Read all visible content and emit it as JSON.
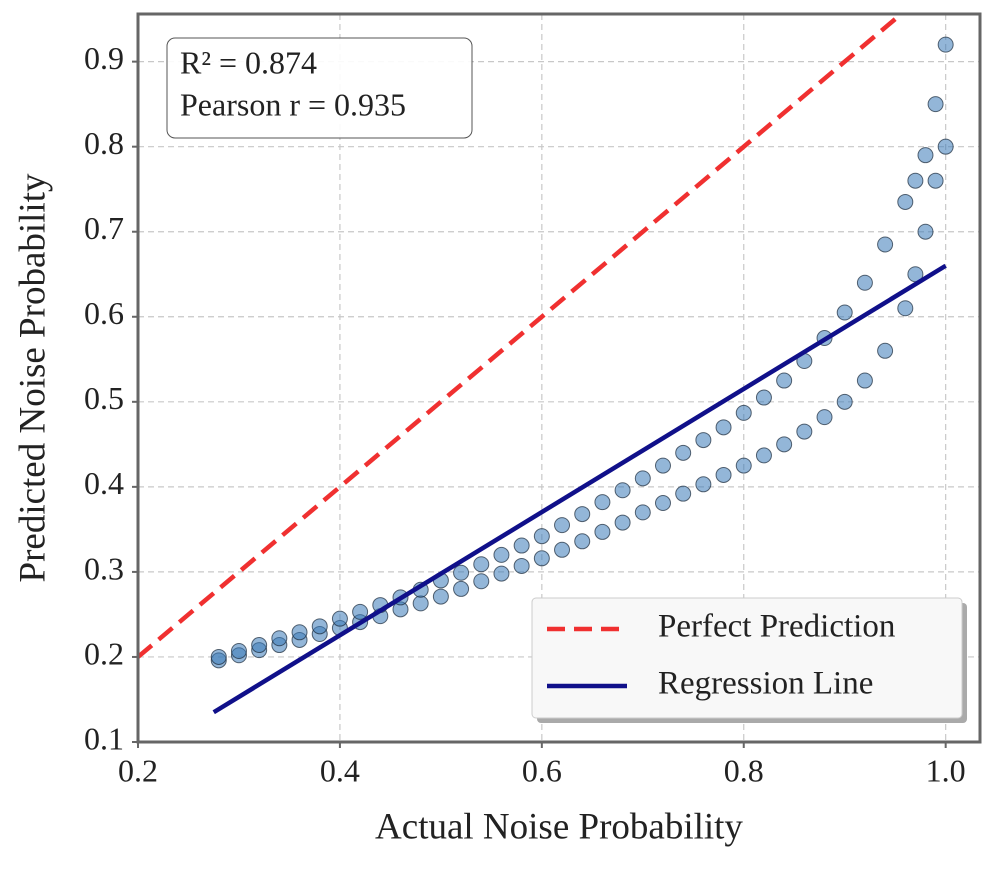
{
  "chart_data": {
    "type": "scatter",
    "xlabel": "Actual Noise Probability",
    "ylabel": "Predicted Noise Probability",
    "annotation": [
      "R² = 0.874",
      "Pearson r = 0.935"
    ],
    "xlim": [
      0.2,
      1.034
    ],
    "ylim": [
      0.1,
      0.956
    ],
    "xticks": [
      0.2,
      0.4,
      0.6,
      0.8,
      {
        "value": 1,
        "label": "1.0"
      }
    ],
    "yticks": [
      0.1,
      0.2,
      0.3,
      0.4,
      0.5,
      0.6,
      0.7,
      0.8,
      0.9
    ],
    "grid": true,
    "legend": "lower right",
    "points": {
      "color": "#3a7ab8",
      "x": [
        0.28,
        0.28,
        0.3,
        0.3,
        0.32,
        0.32,
        0.34,
        0.34,
        0.36,
        0.36,
        0.38,
        0.38,
        0.4,
        0.4,
        0.42,
        0.42,
        0.44,
        0.44,
        0.46,
        0.46,
        0.48,
        0.48,
        0.5,
        0.5,
        0.52,
        0.52,
        0.54,
        0.54,
        0.56,
        0.56,
        0.58,
        0.58,
        0.6,
        0.6,
        0.62,
        0.62,
        0.64,
        0.64,
        0.66,
        0.66,
        0.68,
        0.68,
        0.7,
        0.7,
        0.72,
        0.72,
        0.74,
        0.74,
        0.76,
        0.76,
        0.78,
        0.78,
        0.8,
        0.8,
        0.82,
        0.82,
        0.84,
        0.84,
        0.86,
        0.86,
        0.88,
        0.88,
        0.9,
        0.9,
        0.92,
        0.92,
        0.94,
        0.94,
        0.96,
        0.96,
        0.97,
        0.97,
        0.98,
        0.98,
        0.99,
        0.99,
        1.0,
        1.0
      ],
      "values": [
        0.196,
        0.2,
        0.202,
        0.207,
        0.208,
        0.214,
        0.214,
        0.222,
        0.22,
        0.229,
        0.227,
        0.236,
        0.234,
        0.245,
        0.241,
        0.253,
        0.248,
        0.261,
        0.256,
        0.27,
        0.263,
        0.279,
        0.271,
        0.29,
        0.28,
        0.299,
        0.289,
        0.309,
        0.298,
        0.32,
        0.307,
        0.331,
        0.316,
        0.342,
        0.326,
        0.355,
        0.336,
        0.368,
        0.347,
        0.382,
        0.358,
        0.396,
        0.37,
        0.41,
        0.381,
        0.425,
        0.392,
        0.44,
        0.403,
        0.455,
        0.414,
        0.47,
        0.425,
        0.487,
        0.437,
        0.505,
        0.45,
        0.525,
        0.465,
        0.548,
        0.482,
        0.575,
        0.5,
        0.605,
        0.525,
        0.64,
        0.56,
        0.685,
        0.61,
        0.735,
        0.65,
        0.76,
        0.7,
        0.79,
        0.76,
        0.85,
        0.8,
        0.92
      ]
    },
    "series": [
      {
        "name": "Perfect Prediction",
        "color": "#f03030",
        "dash": true,
        "x": [
          0.2,
          0.956
        ],
        "values": [
          0.2,
          0.956
        ]
      },
      {
        "name": "Regression Line",
        "color": "#10108a",
        "dash": false,
        "x": [
          0.275,
          1.0
        ],
        "values": [
          0.135,
          0.66
        ]
      }
    ]
  }
}
